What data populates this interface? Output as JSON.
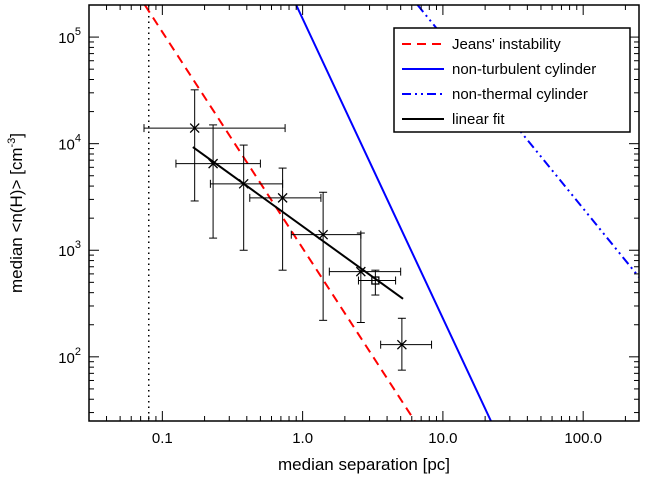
{
  "chart_data": {
    "type": "scatter",
    "title": "",
    "xlabel": "median separation [pc]",
    "ylabel": "median <n(H)> [cm^-3]",
    "ylabel_parts": {
      "main": "median <n(H)> [cm",
      "sup": "-3",
      "end": "]"
    },
    "x_scale": "log",
    "y_scale": "log",
    "xlim": [
      0.03,
      250
    ],
    "ylim": [
      25,
      200000
    ],
    "x_ticks": [
      {
        "value": 0.1,
        "label": "0.1"
      },
      {
        "value": 1,
        "label": "1.0"
      },
      {
        "value": 10,
        "label": "10.0"
      },
      {
        "value": 100,
        "label": "100.0"
      }
    ],
    "y_ticks": [
      {
        "value": 100,
        "base": "10",
        "exp": "2"
      },
      {
        "value": 1000,
        "base": "10",
        "exp": "3"
      },
      {
        "value": 10000,
        "base": "10",
        "exp": "4"
      },
      {
        "value": 100000,
        "base": "10",
        "exp": "5"
      }
    ],
    "vertical_line": {
      "x": 0.08,
      "style": "dotted",
      "color": "#000000"
    },
    "points": [
      {
        "x": 0.17,
        "y": 14000,
        "xerr": [
          0.074,
          0.75
        ],
        "yerr": [
          2900,
          32000
        ],
        "marker": "x"
      },
      {
        "x": 0.23,
        "y": 6500,
        "xerr": [
          0.125,
          0.5
        ],
        "yerr": [
          1300,
          15000
        ],
        "marker": "x"
      },
      {
        "x": 0.38,
        "y": 4200,
        "xerr": [
          0.22,
          0.72
        ],
        "yerr": [
          1000,
          9700
        ],
        "marker": "x"
      },
      {
        "x": 0.72,
        "y": 3100,
        "xerr": [
          0.42,
          1.35
        ],
        "yerr": [
          650,
          5900
        ],
        "marker": "x"
      },
      {
        "x": 1.4,
        "y": 1400,
        "xerr": [
          0.83,
          2.6
        ],
        "yerr": [
          220,
          3500
        ],
        "marker": "x"
      },
      {
        "x": 2.6,
        "y": 630,
        "xerr": [
          1.55,
          5.0
        ],
        "yerr": [
          210,
          1450
        ],
        "marker": "x"
      },
      {
        "x": 3.3,
        "y": 520,
        "xerr": [
          2.5,
          4.6
        ],
        "yerr": [
          380,
          650
        ],
        "marker": "square"
      },
      {
        "x": 5.1,
        "y": 130,
        "xerr": [
          3.6,
          8.3
        ],
        "yerr": [
          75,
          230
        ],
        "marker": "x"
      }
    ],
    "series": [
      {
        "name": "Jeans' instability",
        "color": "#ff0000",
        "style": "dashed",
        "points": [
          [
            0.075,
            200000
          ],
          [
            6.3,
            25
          ]
        ]
      },
      {
        "name": "non-turbulent cylinder",
        "color": "#0000ff",
        "style": "solid",
        "points": [
          [
            0.9,
            200000
          ],
          [
            22,
            25
          ]
        ]
      },
      {
        "name": "non-thermal cylinder",
        "color": "#0000ff",
        "style": "dashdot",
        "points": [
          [
            6.6,
            200000
          ],
          [
            250,
            560
          ]
        ]
      },
      {
        "name": "linear fit",
        "color": "#000000",
        "style": "solid",
        "points": [
          [
            0.165,
            9300
          ],
          [
            5.2,
            350
          ]
        ]
      }
    ],
    "legend_position": "top-right",
    "grid": false
  }
}
